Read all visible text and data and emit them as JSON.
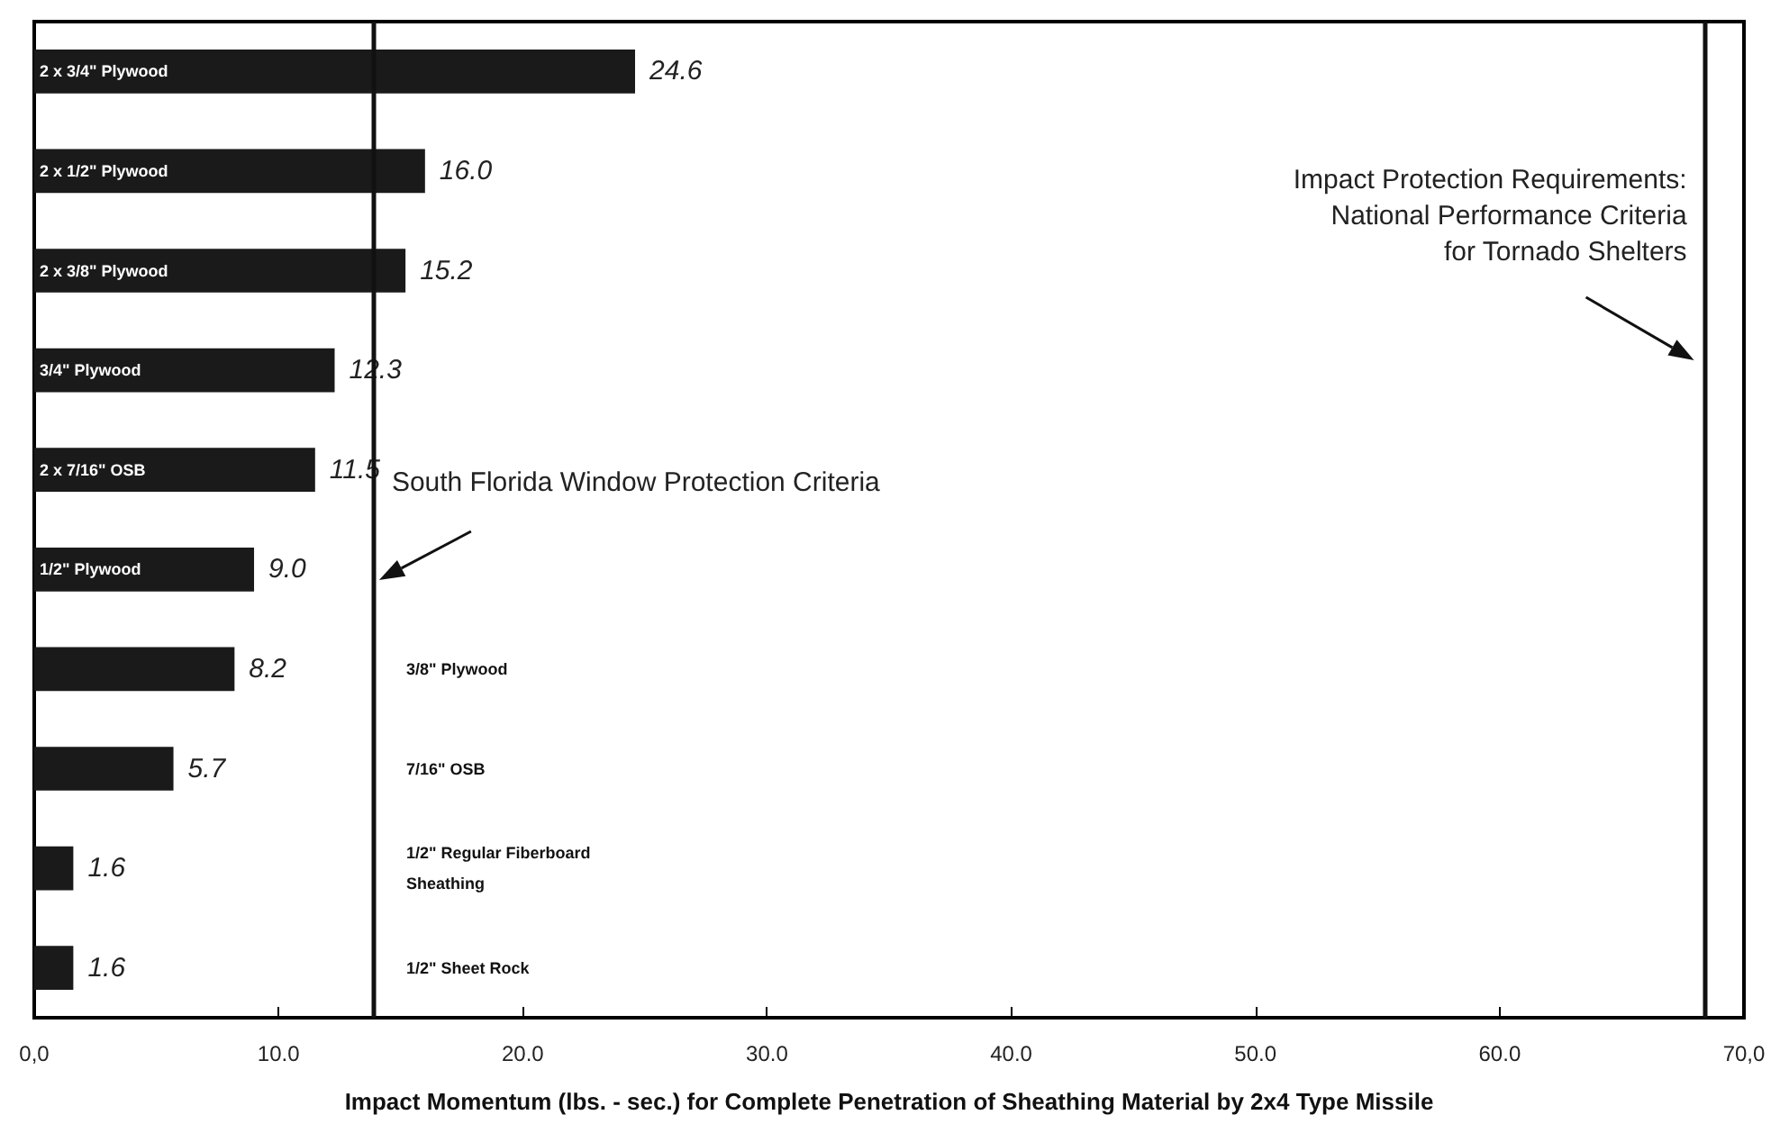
{
  "chart_data": {
    "type": "bar",
    "orientation": "horizontal",
    "xlabel": "Impact Momentum (lbs. - sec.) for Complete Penetration of Sheathing Material by 2x4 Type Missile",
    "categories": [
      "2 x 3/4\" Plywood",
      "2 x 1/2\" Plywood",
      "2 x 3/8\" Plywood",
      "3/4\" Plywood",
      "2 x 7/16\" OSB",
      "1/2\" Plywood",
      "3/8\" Plywood",
      "7/16\" OSB",
      "1/2\" Regular Fiberboard Sheathing",
      "1/2\" Sheet Rock"
    ],
    "values": [
      24.6,
      16.0,
      15.2,
      12.3,
      11.5,
      9.0,
      8.2,
      5.7,
      1.6,
      1.6
    ],
    "value_labels": [
      "24.6",
      "16.0",
      "15.2",
      "12.3",
      "11.5",
      "9.0",
      "8.2",
      "5.7",
      "1.6",
      "1.6"
    ],
    "color": "#1a1a1a",
    "xlim": [
      0,
      70
    ],
    "xticks": [
      {
        "value": 0,
        "label": "0,0"
      },
      {
        "value": 10,
        "label": "10.0"
      },
      {
        "value": 20,
        "label": "20.0"
      },
      {
        "value": 30,
        "label": "30.0"
      },
      {
        "value": 40,
        "label": "40.0"
      },
      {
        "value": 50,
        "label": "50.0"
      },
      {
        "value": 60,
        "label": "60.0"
      },
      {
        "value": 70,
        "label": "70,0"
      }
    ],
    "ref_lines": [
      {
        "axis": "x",
        "value": 13.9,
        "label": "South Florida Window Protection Criteria",
        "color": "#111111"
      },
      {
        "axis": "x",
        "value": 68.4,
        "label": "Impact Protection Requirements:\nNational Performance Criteria\nfor Tornado Shelters",
        "color": "#111111"
      }
    ],
    "grid": false
  }
}
